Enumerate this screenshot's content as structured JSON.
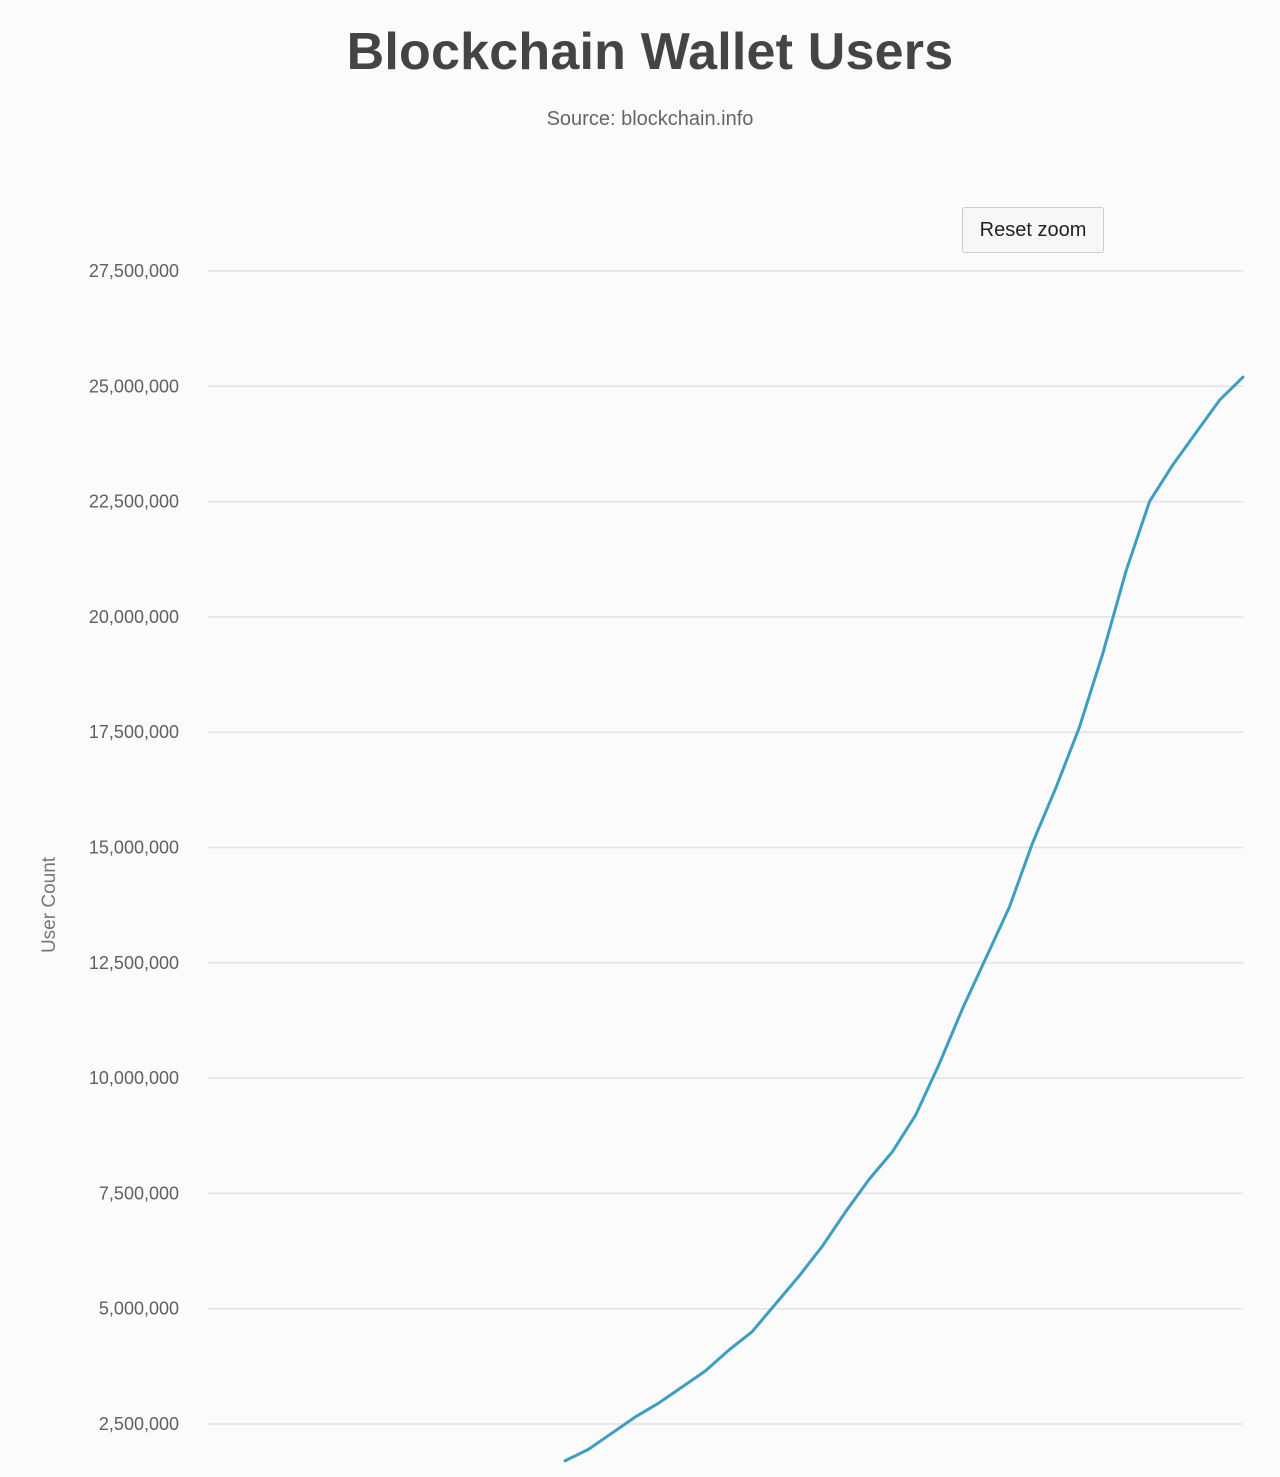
{
  "chart_data": {
    "type": "line",
    "title": "Blockchain Wallet Users",
    "subtitle": "Source: blockchain.info",
    "xlabel": "",
    "ylabel": "User Count",
    "ylim": [
      0,
      27500000
    ],
    "yticks": [
      "2,500,000",
      "5,000,000",
      "7,500,000",
      "10,000,000",
      "12,500,000",
      "15,000,000",
      "17,500,000",
      "20,000,000",
      "22,500,000",
      "25,000,000",
      "27,500,000"
    ],
    "ytick_values": [
      2500000,
      5000000,
      7500000,
      10000000,
      12500000,
      15000000,
      17500000,
      20000000,
      22500000,
      25000000,
      27500000
    ],
    "grid": true,
    "line_color": "#3d9ec2",
    "series": [
      {
        "values": [
          1700000,
          1950000,
          2300000,
          2650000,
          2950000,
          3300000,
          3650000,
          4100000,
          4500000,
          5100000,
          5700000,
          6350000,
          7100000,
          7800000,
          8400000,
          9200000,
          10300000,
          11500000,
          12600000,
          13700000,
          15100000,
          16300000,
          17600000,
          19200000,
          21000000,
          22500000,
          23300000,
          24000000,
          24700000,
          25200000
        ]
      }
    ]
  },
  "controls": {
    "reset_zoom_label": "Reset zoom"
  }
}
